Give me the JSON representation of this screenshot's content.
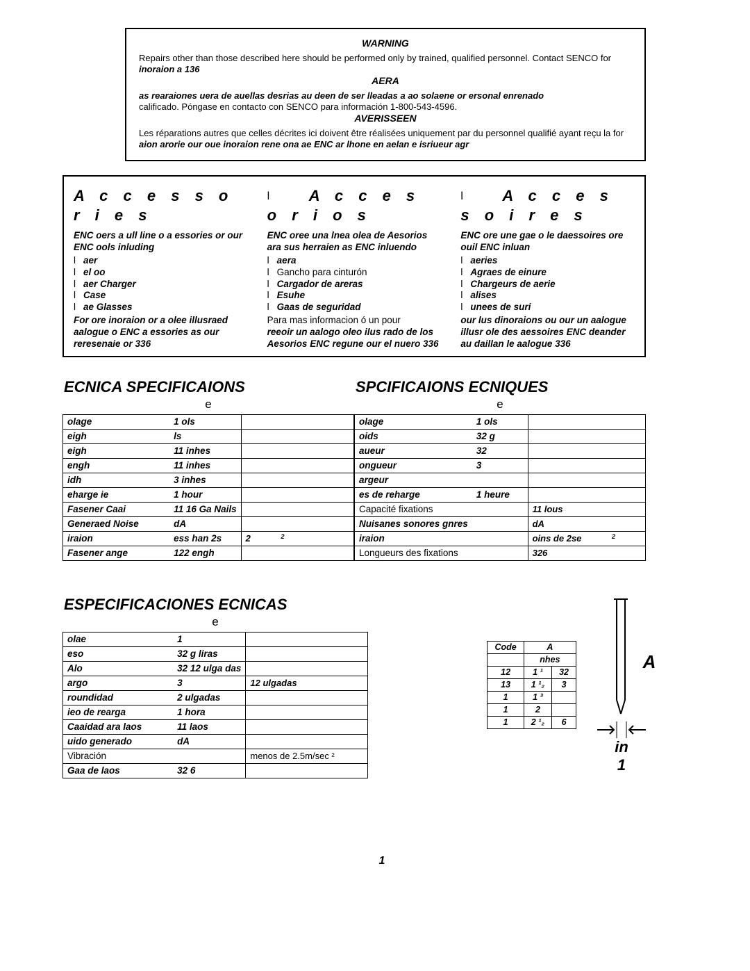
{
  "warning_box": {
    "h1": "WARNING",
    "p1a": "Repairs other than those described here should be performed only by trained, qualified personnel. Contact SENCO for",
    "p1b": "inoraion a 136",
    "h2": "AERA",
    "p2a": "as rearaiones uera de auellas desrias au deen de ser lleadas a ao solaene or ersonal enrenado",
    "p2b": "calificado. Póngase en contacto con SENCO para información 1-800-543-4596.",
    "h3": "AVERISSEEN",
    "p3a": "Les réparations autres que celles décrites ici doivent être réalisées uniquement par du personnel qualifié ayant reçu la for",
    "p3b": "aion arorie our oue inoraion rene ona ae ENC ar lhone en aelan e isriueur agr"
  },
  "accessories": {
    "col1": {
      "head": "A c c e s s o r i e s",
      "lead": "ENC oers a ull line o a essories or our ENC ools inluding",
      "items": [
        "aer",
        "el oo",
        "aer  Charger",
        "Case",
        "ae Glasses"
      ],
      "trail": "For ore inoraion or a olee illusraed aalogue o ENC a essories as our reresenaie or 336"
    },
    "col2": {
      "head": "A c c e s o r i o s",
      "lead": "ENC oree una lnea olea de Aesorios ara sus herraien as ENC          inluendo",
      "items": [
        "aera",
        "Gancho para cinturón",
        "Cargador de areras",
        "Esuhe",
        "Gaas de seguridad"
      ],
      "items_norm_idx": 1,
      "trail1": "Para mas informacion ó un pour",
      "trail2": "reeoir un aalogo oleo ilus rado de los Aesorios ENC regune our el nuero 336"
    },
    "col3": {
      "head": "A c c e s s o i r e s",
      "lead": "ENC ore une gae o le daessoires ore ouil ENC inluan",
      "items": [
        "aeries",
        "Agraes de einure",
        "Chargeurs de aerie",
        "alises",
        "unees de suri"
      ],
      "trail": "our lus dinoraions ou our un aalogue illusr ole des aessoires ENC deander au daillan le aalogue 336"
    }
  },
  "spec_en": {
    "title": "ECNICA SPECIFICAIONS",
    "sub": "e",
    "rows": [
      {
        "a": "olage",
        "b": "1 ols",
        "c": ""
      },
      {
        "a": "eigh",
        "b": "ls",
        "c": ""
      },
      {
        "a": "eigh",
        "b": "11 inhes",
        "c": ""
      },
      {
        "a": "engh",
        "b": "11 inhes",
        "c": ""
      },
      {
        "a": "idh",
        "b": "3 inhes",
        "c": ""
      },
      {
        "a": "eharge ie",
        "b": "1 hour",
        "c": ""
      },
      {
        "a": "Fasener Caai",
        "b": "11 16 Ga Nails",
        "c": ""
      },
      {
        "a": "Generaed Noise",
        "b": "dA",
        "c": ""
      },
      {
        "a": "iraion",
        "b": "ess han 2s",
        "c": "2",
        "sup": true
      },
      {
        "a": "Fasener ange",
        "b": "122 engh",
        "c": ""
      }
    ]
  },
  "spec_fr": {
    "title": "SPCIFICAIONS ECNIQUES",
    "sub": "e",
    "rows": [
      {
        "a": "olage",
        "b": "1 ols",
        "c": ""
      },
      {
        "a": "oids",
        "b": "32 g",
        "c": ""
      },
      {
        "a": "aueur",
        "b": "32",
        "c": ""
      },
      {
        "a": "ongueur",
        "b": "3",
        "c": ""
      },
      {
        "a": "argeur",
        "b": "",
        "c": ""
      },
      {
        "a": "es de reharge",
        "b": "1 heure",
        "c": ""
      },
      {
        "a": "Capacité fixations",
        "b": "",
        "c": "11 lous",
        "norm_a": true
      },
      {
        "a": "Nuisanes sonores gnres",
        "b": "",
        "c": "dA"
      },
      {
        "a": "iraion",
        "b": "",
        "c": "oins de 2se",
        "sup": "2"
      },
      {
        "a": "Longueurs des fixations",
        "b": "",
        "c": "326",
        "norm_a": true
      }
    ]
  },
  "spec_es": {
    "title": "ESPECIFICACIONES ECNICAS",
    "sub": "e",
    "rows": [
      {
        "a": "olae",
        "b": "1",
        "c": ""
      },
      {
        "a": "eso",
        "b": "32 g  liras",
        "c": ""
      },
      {
        "a": "Alo",
        "b": "32 12 ulga             das",
        "c": ""
      },
      {
        "a": "argo",
        "b": "3",
        "c": "12 ulgadas"
      },
      {
        "a": "roundidad",
        "b": "2 ulgadas",
        "c": ""
      },
      {
        "a": "ieo de rearga",
        "b": "1 hora",
        "c": ""
      },
      {
        "a": "Caaidad ara laos",
        "b": "11 laos",
        "c": ""
      },
      {
        "a": "uido generado",
        "b": "dA",
        "c": ""
      },
      {
        "a": "Vibración",
        "b": "",
        "c": "menos de 2.5m/sec ²",
        "norm_a": true,
        "norm_c": true
      },
      {
        "a": "Gaa de laos",
        "b": "32  6",
        "c": ""
      }
    ]
  },
  "code_table": {
    "headers": [
      "Code",
      "A"
    ],
    "sub": "nhes",
    "rows": [
      [
        "12",
        "1 ¹",
        "32"
      ],
      [
        "13",
        "1 ¹₂",
        "3"
      ],
      [
        "1",
        "1 ³",
        ""
      ],
      [
        "1",
        "2",
        ""
      ],
      [
        "1",
        "2 ¹₂",
        "6"
      ]
    ]
  },
  "diagram": {
    "label_a": "A",
    "label_in": "in",
    "label_1": "1"
  },
  "page_number": "1"
}
